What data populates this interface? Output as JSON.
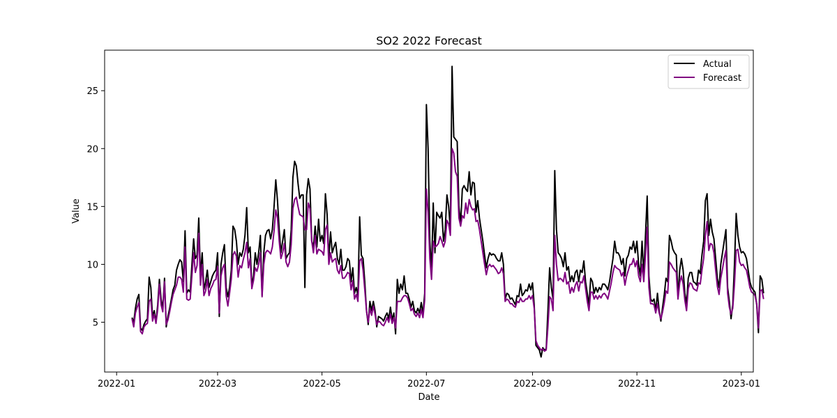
{
  "chart_data": {
    "type": "line",
    "title": "SO2 2022 Forecast",
    "xlabel": "Date",
    "ylabel": "Value",
    "xlim": [
      "2021-12-25",
      "2023-01-08"
    ],
    "ylim": [
      0.7,
      28.5
    ],
    "x_ticks": [
      "2022-01",
      "2022-03",
      "2022-05",
      "2022-07",
      "2022-09",
      "2022-11",
      "2023-01"
    ],
    "y_ticks": [
      5,
      10,
      15,
      20,
      25
    ],
    "grid": false,
    "legend_position": "top-right",
    "x_start": "2022-01-10",
    "x_end": "2022-12-31",
    "series": [
      {
        "name": "Actual",
        "color": "#000000",
        "values": [
          5.4,
          5.0,
          6.2,
          7.0,
          7.4,
          4.5,
          4.3,
          4.8,
          5.1,
          5.3,
          8.9,
          8.0,
          5.5,
          6.0,
          5.0,
          6.5,
          8.7,
          7.0,
          6.2,
          8.8,
          4.6,
          5.5,
          6.2,
          7.0,
          7.8,
          8.2,
          9.5,
          10.0,
          10.4,
          10.2,
          8.5,
          12.9,
          7.5,
          7.8,
          7.6,
          10.0,
          12.2,
          10.5,
          10.8,
          14.0,
          9.0,
          11.0,
          7.8,
          8.5,
          9.5,
          8.0,
          8.5,
          9.0,
          9.3,
          9.5,
          11.0,
          5.5,
          10.0,
          11.0,
          11.7,
          8.0,
          7.2,
          8.0,
          9.5,
          13.3,
          13.0,
          12.0,
          10.0,
          11.0,
          10.7,
          11.3,
          12.5,
          14.9,
          11.0,
          11.5,
          8.2,
          9.0,
          11.0,
          10.0,
          11.0,
          12.5,
          7.3,
          11.0,
          12.5,
          12.9,
          13.0,
          12.2,
          13.0,
          15.0,
          17.3,
          15.5,
          13.0,
          11.0,
          12.0,
          13.0,
          10.5,
          10.8,
          11.0,
          13.0,
          17.5,
          18.9,
          18.5,
          17.0,
          15.7,
          16.0,
          16.0,
          8.0,
          16.0,
          17.4,
          16.5,
          12.0,
          11.5,
          13.3,
          11.5,
          13.9,
          12.0,
          12.5,
          11.8,
          16.1,
          14.3,
          10.5,
          12.8,
          11.0,
          11.5,
          11.9,
          10.5,
          10.0,
          11.3,
          9.5,
          9.5,
          9.8,
          10.5,
          10.3,
          8.5,
          9.7,
          7.5,
          8.0,
          7.3,
          14.1,
          10.8,
          10.5,
          8.5,
          6.0,
          4.8,
          6.8,
          6.0,
          6.8,
          6.0,
          4.6,
          5.5,
          5.4,
          5.3,
          5.1,
          5.5,
          5.8,
          5.3,
          6.3,
          5.2,
          5.8,
          4.0,
          8.7,
          7.5,
          8.3,
          7.8,
          9.0,
          7.5,
          7.5,
          7.0,
          6.3,
          6.8,
          6.0,
          5.8,
          6.2,
          5.8,
          6.7,
          5.7,
          7.5,
          23.8,
          20.0,
          12.0,
          9.5,
          15.3,
          11.0,
          14.5,
          14.2,
          14.0,
          14.5,
          12.0,
          13.0,
          16.0,
          15.0,
          13.0,
          27.1,
          21.0,
          20.8,
          20.6,
          15.0,
          13.5,
          16.5,
          16.8,
          16.5,
          16.3,
          18.0,
          16.0,
          17.1,
          17.0,
          14.5,
          15.5,
          14.0,
          13.0,
          12.0,
          10.8,
          9.7,
          10.5,
          11.0,
          10.8,
          10.9,
          10.8,
          10.5,
          10.3,
          10.3,
          11.0,
          10.0,
          7.0,
          7.5,
          7.4,
          7.0,
          7.1,
          6.8,
          6.5,
          7.3,
          7.2,
          8.3,
          7.3,
          7.5,
          7.8,
          7.7,
          8.3,
          7.8,
          8.4,
          6.5,
          3.0,
          2.8,
          2.6,
          2.0,
          2.8,
          2.6,
          2.7,
          6.0,
          9.7,
          8.0,
          7.0,
          18.1,
          13.0,
          11.0,
          10.8,
          10.5,
          9.8,
          11.0,
          9.5,
          9.8,
          8.5,
          9.0,
          8.5,
          9.3,
          9.5,
          8.5,
          9.5,
          9.3,
          10.3,
          8.5,
          7.5,
          6.5,
          8.8,
          8.5,
          7.5,
          8.0,
          7.6,
          8.0,
          7.8,
          8.3,
          8.3,
          8.1,
          7.8,
          8.5,
          9.5,
          10.5,
          12.0,
          11.0,
          11.0,
          10.7,
          10.0,
          10.5,
          9.0,
          10.5,
          10.8,
          11.5,
          11.3,
          12.0,
          11.0,
          12.0,
          10.0,
          9.0,
          12.0,
          9.0,
          12.5,
          15.9,
          9.0,
          7.0,
          6.8,
          7.0,
          6.0,
          7.5,
          6.0,
          5.1,
          6.3,
          7.4,
          8.8,
          8.5,
          12.5,
          12.0,
          11.3,
          11.0,
          10.8,
          7.2,
          9.5,
          10.5,
          9.5,
          7.5,
          6.6,
          8.8,
          9.3,
          9.3,
          8.5,
          8.4,
          8.2,
          9.5,
          9.2,
          10.8,
          12.0,
          15.5,
          16.1,
          12.5,
          13.9,
          12.8,
          12.2,
          10.5,
          8.8,
          8.0,
          10.0,
          11.0,
          12.0,
          13.0,
          8.0,
          6.8,
          5.3,
          6.5,
          10.0,
          14.4,
          12.5,
          11.5,
          11.0,
          11.1,
          10.9,
          10.5,
          9.5,
          8.5,
          8.0,
          7.8,
          7.6,
          6.5,
          4.1,
          9.0,
          8.7,
          7.5
        ]
      },
      {
        "name": "Forecast",
        "color": "#800080",
        "values": [
          5.3,
          4.6,
          5.8,
          6.3,
          6.7,
          4.2,
          4.0,
          4.6,
          4.8,
          4.9,
          6.8,
          7.0,
          5.1,
          5.7,
          4.9,
          6.1,
          8.3,
          6.5,
          5.9,
          8.5,
          4.8,
          5.2,
          5.9,
          6.7,
          7.4,
          7.8,
          8.2,
          8.9,
          8.9,
          8.7,
          7.6,
          11.5,
          7.0,
          6.9,
          7.0,
          9.0,
          11.0,
          9.3,
          9.9,
          12.7,
          8.2,
          10.0,
          7.3,
          7.7,
          8.7,
          7.3,
          7.9,
          8.2,
          8.6,
          8.7,
          9.8,
          5.8,
          9.0,
          9.7,
          10.0,
          7.3,
          6.4,
          7.5,
          8.7,
          10.8,
          11.1,
          10.7,
          8.9,
          9.9,
          9.7,
          10.4,
          11.0,
          11.9,
          9.7,
          10.5,
          7.9,
          8.6,
          9.7,
          9.4,
          10.0,
          11.0,
          7.2,
          10.0,
          11.0,
          11.2,
          11.1,
          10.9,
          11.5,
          12.9,
          14.7,
          14.0,
          12.0,
          10.5,
          11.0,
          11.8,
          10.2,
          9.8,
          10.2,
          11.7,
          14.8,
          15.6,
          15.8,
          15.0,
          14.3,
          14.2,
          14.1,
          13.0,
          13.0,
          15.3,
          14.8,
          12.0,
          11.0,
          12.5,
          10.9,
          11.3,
          11.2,
          11.1,
          10.8,
          13.0,
          13.4,
          10.0,
          11.0,
          10.2,
          10.4,
          10.5,
          9.5,
          9.2,
          9.9,
          8.8,
          8.8,
          9.0,
          9.3,
          9.2,
          7.8,
          8.6,
          7.0,
          7.4,
          6.8,
          10.3,
          10.5,
          9.5,
          7.8,
          6.0,
          5.0,
          6.2,
          5.6,
          6.4,
          5.7,
          4.8,
          5.1,
          5.0,
          4.8,
          4.7,
          5.0,
          5.4,
          5.0,
          5.7,
          4.9,
          5.4,
          4.5,
          6.8,
          6.8,
          6.8,
          7.1,
          7.3,
          7.3,
          7.1,
          6.6,
          6.0,
          6.2,
          5.7,
          5.5,
          5.8,
          5.4,
          6.1,
          5.4,
          6.9,
          16.5,
          14.5,
          10.5,
          8.7,
          12.0,
          11.5,
          11.6,
          11.8,
          12.4,
          12.0,
          11.5,
          12.0,
          13.8,
          13.5,
          12.5,
          20.0,
          19.6,
          18.0,
          17.6,
          14.0,
          13.3,
          14.2,
          14.0,
          15.3,
          14.4,
          15.6,
          15.0,
          14.7,
          14.8,
          13.7,
          13.8,
          13.0,
          12.0,
          11.0,
          10.0,
          9.1,
          9.8,
          10.0,
          9.8,
          9.9,
          9.7,
          9.5,
          9.2,
          9.3,
          9.7,
          9.2,
          6.8,
          7.0,
          6.9,
          6.6,
          6.6,
          6.4,
          6.3,
          6.8,
          6.7,
          7.1,
          6.8,
          6.8,
          7.0,
          7.0,
          7.3,
          7.0,
          7.3,
          6.2,
          3.4,
          3.0,
          2.8,
          2.6,
          2.7,
          2.5,
          2.6,
          4.6,
          7.2,
          7.0,
          6.0,
          12.5,
          10.0,
          8.6,
          8.8,
          8.7,
          8.5,
          9.3,
          8.3,
          8.5,
          7.5,
          8.0,
          7.6,
          8.2,
          8.5,
          7.7,
          8.5,
          8.4,
          9.0,
          7.9,
          6.8,
          6.0,
          7.6,
          7.6,
          7.0,
          7.3,
          7.0,
          7.3,
          7.1,
          7.4,
          7.5,
          7.3,
          7.0,
          7.7,
          8.4,
          9.3,
          9.9,
          9.7,
          9.6,
          9.5,
          9.0,
          9.3,
          8.2,
          9.0,
          9.5,
          10.0,
          10.0,
          10.5,
          9.8,
          10.3,
          9.0,
          8.5,
          10.0,
          8.5,
          10.8,
          13.2,
          8.0,
          6.6,
          6.6,
          6.5,
          5.8,
          6.6,
          5.8,
          5.3,
          5.9,
          6.7,
          7.7,
          7.5,
          10.2,
          10.0,
          9.7,
          9.5,
          9.3,
          7.0,
          8.4,
          9.0,
          8.3,
          6.9,
          6.0,
          7.9,
          8.4,
          8.3,
          7.9,
          7.8,
          7.7,
          8.4,
          8.3,
          9.5,
          10.5,
          12.5,
          13.7,
          11.2,
          11.8,
          11.7,
          11.0,
          9.5,
          8.1,
          7.4,
          8.8,
          9.6,
          10.5,
          11.2,
          7.5,
          6.3,
          5.7,
          6.2,
          8.3,
          11.2,
          11.3,
          10.2,
          9.9,
          10.0,
          9.7,
          9.5,
          8.8,
          8.0,
          7.6,
          7.5,
          7.3,
          6.6,
          4.5,
          7.7,
          7.8,
          7.0
        ]
      }
    ]
  }
}
